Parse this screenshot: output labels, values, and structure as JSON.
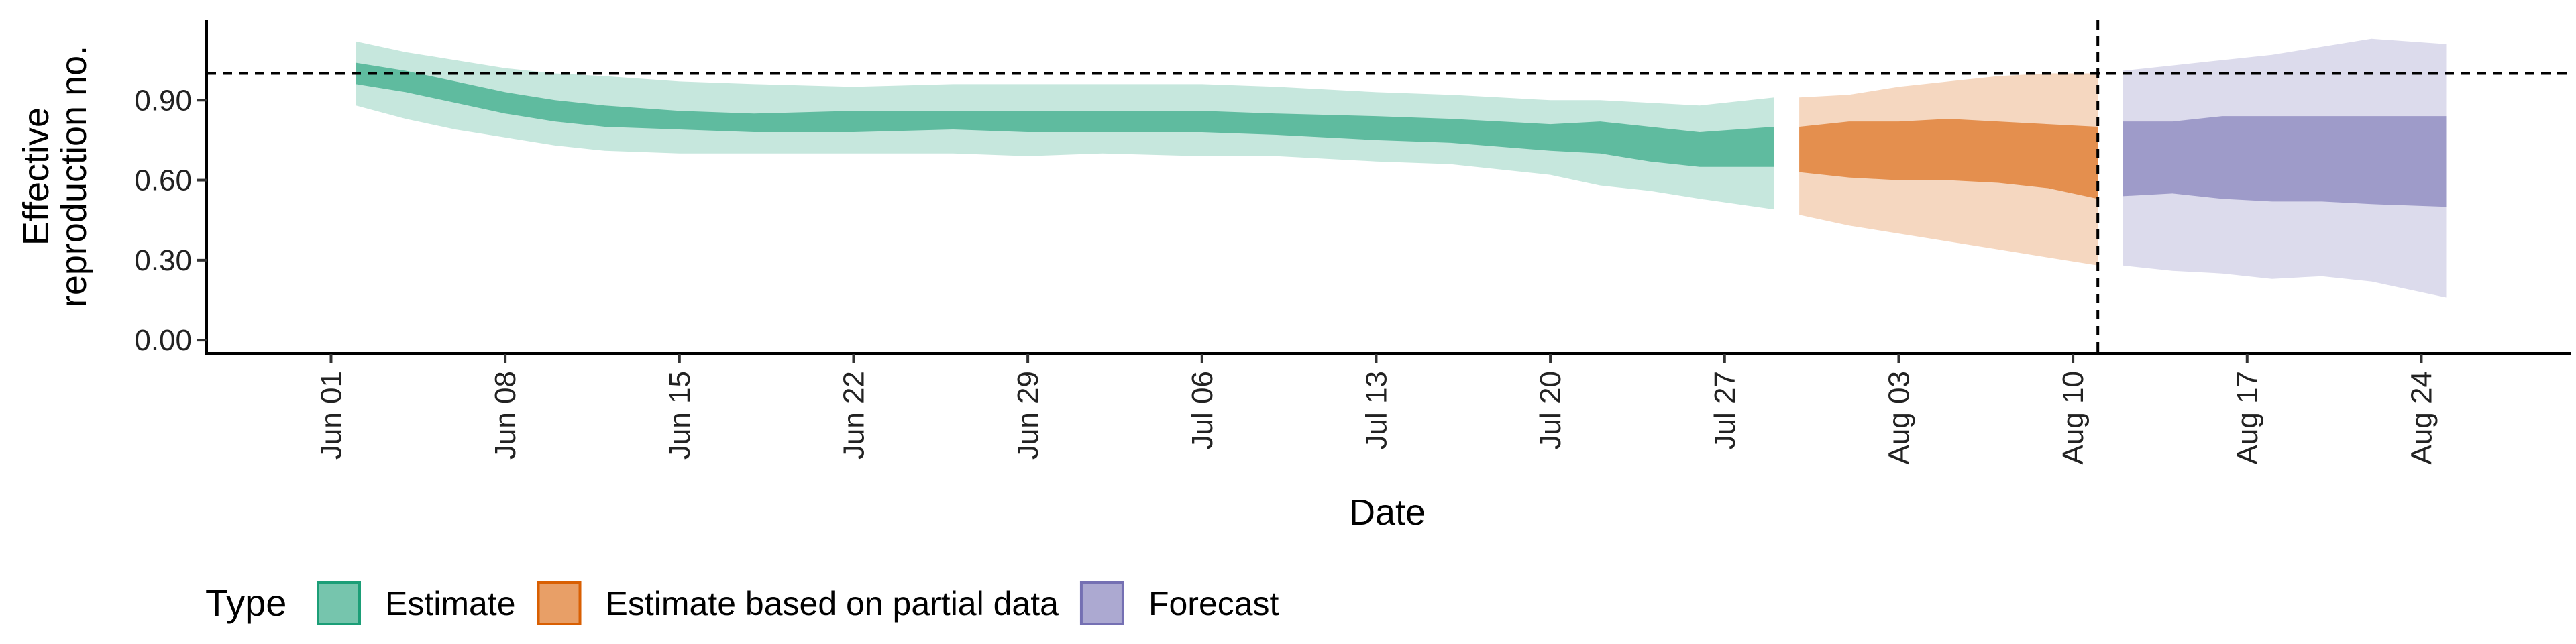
{
  "chart_data": {
    "type": "area",
    "xlabel": "Date",
    "ylabel_lines": [
      "Effective",
      "reproduction no."
    ],
    "x_ticks": [
      {
        "date": "2020-06-01",
        "label": "Jun 01"
      },
      {
        "date": "2020-06-08",
        "label": "Jun 08"
      },
      {
        "date": "2020-06-15",
        "label": "Jun 15"
      },
      {
        "date": "2020-06-22",
        "label": "Jun 22"
      },
      {
        "date": "2020-06-29",
        "label": "Jun 29"
      },
      {
        "date": "2020-07-06",
        "label": "Jul 06"
      },
      {
        "date": "2020-07-13",
        "label": "Jul 13"
      },
      {
        "date": "2020-07-20",
        "label": "Jul 20"
      },
      {
        "date": "2020-07-27",
        "label": "Jul 27"
      },
      {
        "date": "2020-08-03",
        "label": "Aug 03"
      },
      {
        "date": "2020-08-10",
        "label": "Aug 10"
      },
      {
        "date": "2020-08-17",
        "label": "Aug 17"
      },
      {
        "date": "2020-08-24",
        "label": "Aug 24"
      }
    ],
    "y_ticks": [
      {
        "value": 0.0,
        "label": "0.00"
      },
      {
        "value": 0.3,
        "label": "0.30"
      },
      {
        "value": 0.6,
        "label": "0.60"
      },
      {
        "value": 0.9,
        "label": "0.90"
      }
    ],
    "xlim": [
      "2020-05-27",
      "2020-08-30"
    ],
    "ylim": [
      -0.05,
      1.2
    ],
    "hline": 1.0,
    "vline": "2020-08-11",
    "grid": false,
    "legend": {
      "title": "Type",
      "position": "bottom-left",
      "entries": [
        {
          "label": "Estimate",
          "color": "#1b9e77"
        },
        {
          "label": "Estimate based on partial data",
          "color": "#d95f02"
        },
        {
          "label": "Forecast",
          "color": "#7570b3"
        }
      ]
    },
    "series": [
      {
        "name": "Estimate",
        "color": "#1b9e77",
        "points": [
          {
            "date": "2020-06-02",
            "lower90": 0.88,
            "lower50": 0.96,
            "upper50": 1.04,
            "upper90": 1.12
          },
          {
            "date": "2020-06-04",
            "lower90": 0.83,
            "lower50": 0.93,
            "upper50": 1.01,
            "upper90": 1.08
          },
          {
            "date": "2020-06-06",
            "lower90": 0.79,
            "lower50": 0.89,
            "upper50": 0.97,
            "upper90": 1.05
          },
          {
            "date": "2020-06-08",
            "lower90": 0.76,
            "lower50": 0.85,
            "upper50": 0.93,
            "upper90": 1.02
          },
          {
            "date": "2020-06-10",
            "lower90": 0.73,
            "lower50": 0.82,
            "upper50": 0.9,
            "upper90": 1.0
          },
          {
            "date": "2020-06-12",
            "lower90": 0.71,
            "lower50": 0.8,
            "upper50": 0.88,
            "upper90": 0.99
          },
          {
            "date": "2020-06-15",
            "lower90": 0.7,
            "lower50": 0.79,
            "upper50": 0.86,
            "upper90": 0.97
          },
          {
            "date": "2020-06-18",
            "lower90": 0.7,
            "lower50": 0.78,
            "upper50": 0.85,
            "upper90": 0.96
          },
          {
            "date": "2020-06-22",
            "lower90": 0.7,
            "lower50": 0.78,
            "upper50": 0.86,
            "upper90": 0.95
          },
          {
            "date": "2020-06-26",
            "lower90": 0.7,
            "lower50": 0.79,
            "upper50": 0.86,
            "upper90": 0.96
          },
          {
            "date": "2020-06-29",
            "lower90": 0.69,
            "lower50": 0.78,
            "upper50": 0.86,
            "upper90": 0.96
          },
          {
            "date": "2020-07-02",
            "lower90": 0.7,
            "lower50": 0.78,
            "upper50": 0.86,
            "upper90": 0.96
          },
          {
            "date": "2020-07-06",
            "lower90": 0.69,
            "lower50": 0.78,
            "upper50": 0.86,
            "upper90": 0.96
          },
          {
            "date": "2020-07-09",
            "lower90": 0.69,
            "lower50": 0.77,
            "upper50": 0.85,
            "upper90": 0.95
          },
          {
            "date": "2020-07-13",
            "lower90": 0.67,
            "lower50": 0.75,
            "upper50": 0.84,
            "upper90": 0.93
          },
          {
            "date": "2020-07-16",
            "lower90": 0.66,
            "lower50": 0.74,
            "upper50": 0.83,
            "upper90": 0.92
          },
          {
            "date": "2020-07-20",
            "lower90": 0.62,
            "lower50": 0.71,
            "upper50": 0.81,
            "upper90": 0.9
          },
          {
            "date": "2020-07-22",
            "lower90": 0.58,
            "lower50": 0.7,
            "upper50": 0.82,
            "upper90": 0.9
          },
          {
            "date": "2020-07-24",
            "lower90": 0.56,
            "lower50": 0.67,
            "upper50": 0.8,
            "upper90": 0.89
          },
          {
            "date": "2020-07-26",
            "lower90": 0.53,
            "lower50": 0.65,
            "upper50": 0.78,
            "upper90": 0.88
          },
          {
            "date": "2020-07-29",
            "lower90": 0.49,
            "lower50": 0.65,
            "upper50": 0.8,
            "upper90": 0.91
          }
        ]
      },
      {
        "name": "Estimate based on partial data",
        "color": "#d95f02",
        "points": [
          {
            "date": "2020-07-30",
            "lower90": 0.47,
            "lower50": 0.63,
            "upper50": 0.8,
            "upper90": 0.91
          },
          {
            "date": "2020-08-01",
            "lower90": 0.43,
            "lower50": 0.61,
            "upper50": 0.82,
            "upper90": 0.92
          },
          {
            "date": "2020-08-03",
            "lower90": 0.4,
            "lower50": 0.6,
            "upper50": 0.82,
            "upper90": 0.95
          },
          {
            "date": "2020-08-05",
            "lower90": 0.37,
            "lower50": 0.6,
            "upper50": 0.83,
            "upper90": 0.97
          },
          {
            "date": "2020-08-07",
            "lower90": 0.34,
            "lower50": 0.59,
            "upper50": 0.82,
            "upper90": 0.99
          },
          {
            "date": "2020-08-09",
            "lower90": 0.31,
            "lower50": 0.57,
            "upper50": 0.81,
            "upper90": 1.0
          },
          {
            "date": "2020-08-11",
            "lower90": 0.28,
            "lower50": 0.53,
            "upper50": 0.8,
            "upper90": 1.0
          }
        ]
      },
      {
        "name": "Forecast",
        "color": "#7570b3",
        "points": [
          {
            "date": "2020-08-12",
            "lower90": 0.28,
            "lower50": 0.54,
            "upper50": 0.82,
            "upper90": 1.01
          },
          {
            "date": "2020-08-14",
            "lower90": 0.26,
            "lower50": 0.55,
            "upper50": 0.82,
            "upper90": 1.03
          },
          {
            "date": "2020-08-16",
            "lower90": 0.25,
            "lower50": 0.53,
            "upper50": 0.84,
            "upper90": 1.05
          },
          {
            "date": "2020-08-18",
            "lower90": 0.23,
            "lower50": 0.52,
            "upper50": 0.84,
            "upper90": 1.07
          },
          {
            "date": "2020-08-20",
            "lower90": 0.24,
            "lower50": 0.52,
            "upper50": 0.84,
            "upper90": 1.1
          },
          {
            "date": "2020-08-22",
            "lower90": 0.22,
            "lower50": 0.51,
            "upper50": 0.84,
            "upper90": 1.13
          },
          {
            "date": "2020-08-25",
            "lower90": 0.16,
            "lower50": 0.5,
            "upper50": 0.84,
            "upper90": 1.11
          }
        ]
      }
    ]
  }
}
